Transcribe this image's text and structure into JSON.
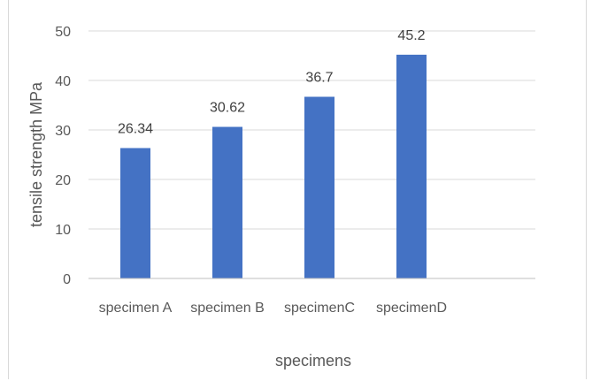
{
  "chart_data": {
    "type": "bar",
    "categories": [
      "specimen A",
      "specimen B",
      "specimenC",
      "specimenD"
    ],
    "values": [
      26.34,
      30.62,
      36.7,
      45.2
    ],
    "data_labels": [
      "26.34",
      "30.62",
      "36.7",
      "45.2"
    ],
    "title": "",
    "xlabel": "specimens",
    "ylabel": "tensile strength MPa",
    "ylim": [
      0,
      50
    ],
    "yticks": [
      0,
      10,
      20,
      30,
      40,
      50
    ],
    "ytick_labels": [
      "0",
      "10",
      "20",
      "30",
      "40",
      "50"
    ],
    "grid": true,
    "legend": "none",
    "bar_color": "#4472C4",
    "grid_color": "#D9D9D9",
    "axis_color": "#BFBFBF"
  }
}
